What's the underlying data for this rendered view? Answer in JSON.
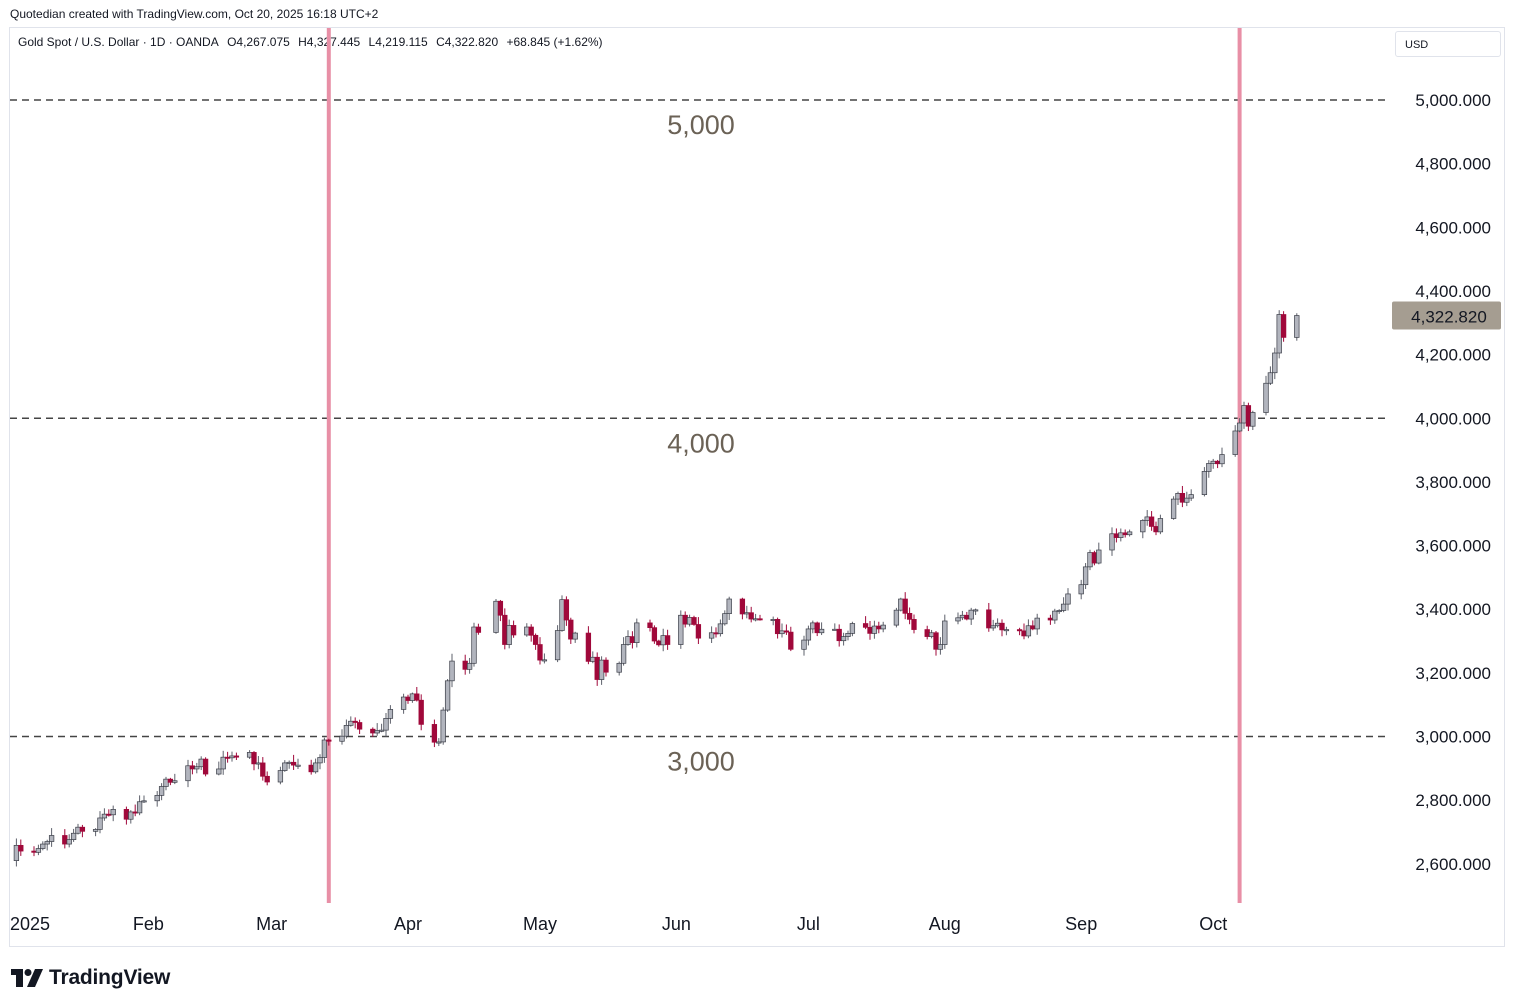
{
  "header": {
    "credit": "Quotedian created with TradingView.com, Oct 20, 2025 16:18 UTC+2"
  },
  "legend": {
    "symbol": "Gold Spot / U.S. Dollar · 1D · OANDA",
    "open": "O4,267.075",
    "high": "H4,327.445",
    "low": "L4,219.115",
    "close": "C4,322.820",
    "change": "+68.845 (+1.62%)"
  },
  "currency_label": "USD",
  "brand": {
    "name": "TradingView",
    "logo_icon": "tradingview-logo-icon"
  },
  "colors": {
    "up_body": "#b2b5be",
    "down_body": "#a0083a",
    "wick_up": "#5d606b",
    "wick_down": "#a0083a",
    "vline": "#e88fa6",
    "hline": "#444444",
    "annotation": "#6b6256",
    "price_tag_bg": "#a59d91"
  },
  "chart_data": {
    "type": "candlestick",
    "y_axis": {
      "ticks": [
        2600,
        2800,
        3000,
        3200,
        3400,
        3600,
        3800,
        4000,
        4200,
        4400,
        4600,
        4800,
        5000
      ],
      "tick_labels": [
        "2,600.000",
        "2,800.000",
        "3,000.000",
        "3,200.000",
        "3,400.000",
        "3,600.000",
        "3,800.000",
        "4,000.000",
        "4,200.000",
        "4,400.000",
        "4,600.000",
        "4,800.000",
        "5,000.000"
      ]
    },
    "x_axis": {
      "labels": [
        {
          "text": "2025",
          "date": "2025-01-01"
        },
        {
          "text": "Feb",
          "date": "2025-02-01"
        },
        {
          "text": "Mar",
          "date": "2025-03-01"
        },
        {
          "text": "Apr",
          "date": "2025-04-01"
        },
        {
          "text": "May",
          "date": "2025-05-01"
        },
        {
          "text": "Jun",
          "date": "2025-06-01"
        },
        {
          "text": "Jul",
          "date": "2025-07-01"
        },
        {
          "text": "Aug",
          "date": "2025-08-01"
        },
        {
          "text": "Sep",
          "date": "2025-09-01"
        },
        {
          "text": "Oct",
          "date": "2025-10-01"
        }
      ]
    },
    "horizontal_lines": [
      {
        "value": 5000,
        "label": "5,000"
      },
      {
        "value": 4000,
        "label": "4,000"
      },
      {
        "value": 3000,
        "label": "3,000"
      }
    ],
    "vertical_lines": [
      {
        "date": "2025-03-14"
      },
      {
        "date": "2025-10-07"
      }
    ],
    "last_price": {
      "value": 4322.82,
      "label": "4,322.820"
    },
    "closes": [
      [
        "2024-12-30",
        2610
      ],
      [
        "2025-01-02",
        2658
      ],
      [
        "2025-01-03",
        2640
      ],
      [
        "2025-01-06",
        2636
      ],
      [
        "2025-01-07",
        2648
      ],
      [
        "2025-01-08",
        2662
      ],
      [
        "2025-01-09",
        2670
      ],
      [
        "2025-01-10",
        2689
      ],
      [
        "2025-01-13",
        2662
      ],
      [
        "2025-01-14",
        2676
      ],
      [
        "2025-01-15",
        2696
      ],
      [
        "2025-01-16",
        2715
      ],
      [
        "2025-01-17",
        2702
      ],
      [
        "2025-01-20",
        2708
      ],
      [
        "2025-01-21",
        2744
      ],
      [
        "2025-01-22",
        2756
      ],
      [
        "2025-01-23",
        2754
      ],
      [
        "2025-01-24",
        2771
      ],
      [
        "2025-01-27",
        2740
      ],
      [
        "2025-01-28",
        2763
      ],
      [
        "2025-01-29",
        2760
      ],
      [
        "2025-01-30",
        2795
      ],
      [
        "2025-01-31",
        2798
      ],
      [
        "2025-02-03",
        2815
      ],
      [
        "2025-02-04",
        2843
      ],
      [
        "2025-02-05",
        2866
      ],
      [
        "2025-02-06",
        2856
      ],
      [
        "2025-02-07",
        2861
      ],
      [
        "2025-02-10",
        2908
      ],
      [
        "2025-02-11",
        2898
      ],
      [
        "2025-02-12",
        2905
      ],
      [
        "2025-02-13",
        2929
      ],
      [
        "2025-02-14",
        2882
      ],
      [
        "2025-02-17",
        2898
      ],
      [
        "2025-02-18",
        2935
      ],
      [
        "2025-02-19",
        2933
      ],
      [
        "2025-02-20",
        2939
      ],
      [
        "2025-02-21",
        2935
      ],
      [
        "2025-02-24",
        2950
      ],
      [
        "2025-02-25",
        2914
      ],
      [
        "2025-02-26",
        2917
      ],
      [
        "2025-02-27",
        2875
      ],
      [
        "2025-02-28",
        2857
      ],
      [
        "2025-03-03",
        2893
      ],
      [
        "2025-03-04",
        2917
      ],
      [
        "2025-03-05",
        2919
      ],
      [
        "2025-03-06",
        2910
      ],
      [
        "2025-03-07",
        2910
      ],
      [
        "2025-03-10",
        2889
      ],
      [
        "2025-03-11",
        2917
      ],
      [
        "2025-03-12",
        2934
      ],
      [
        "2025-03-13",
        2989
      ],
      [
        "2025-03-14",
        2985
      ],
      [
        "2025-03-17",
        3001
      ],
      [
        "2025-03-18",
        3035
      ],
      [
        "2025-03-19",
        3048
      ],
      [
        "2025-03-20",
        3044
      ],
      [
        "2025-03-21",
        3023
      ],
      [
        "2025-03-24",
        3011
      ],
      [
        "2025-03-25",
        3019
      ],
      [
        "2025-03-26",
        3020
      ],
      [
        "2025-03-27",
        3057
      ],
      [
        "2025-03-28",
        3085
      ],
      [
        "2025-03-31",
        3124
      ],
      [
        "2025-04-01",
        3113
      ],
      [
        "2025-04-02",
        3134
      ],
      [
        "2025-04-03",
        3114
      ],
      [
        "2025-04-04",
        3038
      ],
      [
        "2025-04-07",
        2982
      ],
      [
        "2025-04-08",
        2983
      ],
      [
        "2025-04-09",
        3083
      ],
      [
        "2025-04-10",
        3175
      ],
      [
        "2025-04-11",
        3237
      ],
      [
        "2025-04-14",
        3211
      ],
      [
        "2025-04-15",
        3230
      ],
      [
        "2025-04-16",
        3344
      ],
      [
        "2025-04-17",
        3327
      ],
      [
        "2025-04-21",
        3425
      ],
      [
        "2025-04-22",
        3381
      ],
      [
        "2025-04-23",
        3289
      ],
      [
        "2025-04-24",
        3349
      ],
      [
        "2025-04-25",
        3319
      ],
      [
        "2025-04-28",
        3344
      ],
      [
        "2025-04-29",
        3318
      ],
      [
        "2025-04-30",
        3289
      ],
      [
        "2025-05-01",
        3240
      ],
      [
        "2025-05-02",
        3241
      ],
      [
        "2025-05-05",
        3333
      ],
      [
        "2025-05-06",
        3430
      ],
      [
        "2025-05-07",
        3366
      ],
      [
        "2025-05-08",
        3306
      ],
      [
        "2025-05-09",
        3325
      ],
      [
        "2025-05-12",
        3236
      ],
      [
        "2025-05-13",
        3249
      ],
      [
        "2025-05-14",
        3179
      ],
      [
        "2025-05-15",
        3240
      ],
      [
        "2025-05-16",
        3202
      ],
      [
        "2025-05-19",
        3230
      ],
      [
        "2025-05-20",
        3289
      ],
      [
        "2025-05-21",
        3314
      ],
      [
        "2025-05-22",
        3295
      ],
      [
        "2025-05-23",
        3357
      ],
      [
        "2025-05-26",
        3342
      ],
      [
        "2025-05-27",
        3300
      ],
      [
        "2025-05-28",
        3288
      ],
      [
        "2025-05-29",
        3317
      ],
      [
        "2025-05-30",
        3289
      ],
      [
        "2025-06-02",
        3381
      ],
      [
        "2025-06-03",
        3353
      ],
      [
        "2025-06-04",
        3374
      ],
      [
        "2025-06-05",
        3352
      ],
      [
        "2025-06-06",
        3309
      ],
      [
        "2025-06-09",
        3326
      ],
      [
        "2025-06-10",
        3323
      ],
      [
        "2025-06-11",
        3354
      ],
      [
        "2025-06-12",
        3386
      ],
      [
        "2025-06-13",
        3432
      ],
      [
        "2025-06-16",
        3385
      ],
      [
        "2025-06-17",
        3389
      ],
      [
        "2025-06-18",
        3369
      ],
      [
        "2025-06-19",
        3370
      ],
      [
        "2025-06-20",
        3368
      ],
      [
        "2025-06-23",
        3368
      ],
      [
        "2025-06-24",
        3323
      ],
      [
        "2025-06-25",
        3332
      ],
      [
        "2025-06-26",
        3328
      ],
      [
        "2025-06-27",
        3274
      ],
      [
        "2025-06-30",
        3303
      ],
      [
        "2025-07-01",
        3338
      ],
      [
        "2025-07-02",
        3357
      ],
      [
        "2025-07-03",
        3326
      ],
      [
        "2025-07-04",
        3337
      ],
      [
        "2025-07-07",
        3337
      ],
      [
        "2025-07-08",
        3301
      ],
      [
        "2025-07-09",
        3314
      ],
      [
        "2025-07-10",
        3324
      ],
      [
        "2025-07-11",
        3355
      ],
      [
        "2025-07-14",
        3343
      ],
      [
        "2025-07-15",
        3324
      ],
      [
        "2025-07-16",
        3347
      ],
      [
        "2025-07-17",
        3338
      ],
      [
        "2025-07-18",
        3350
      ],
      [
        "2025-07-21",
        3397
      ],
      [
        "2025-07-22",
        3432
      ],
      [
        "2025-07-23",
        3387
      ],
      [
        "2025-07-24",
        3368
      ],
      [
        "2025-07-25",
        3336
      ],
      [
        "2025-07-28",
        3314
      ],
      [
        "2025-07-29",
        3326
      ],
      [
        "2025-07-30",
        3274
      ],
      [
        "2025-07-31",
        3289
      ],
      [
        "2025-08-01",
        3363
      ],
      [
        "2025-08-04",
        3373
      ],
      [
        "2025-08-05",
        3381
      ],
      [
        "2025-08-06",
        3369
      ],
      [
        "2025-08-07",
        3397
      ],
      [
        "2025-08-08",
        3398
      ],
      [
        "2025-08-11",
        3341
      ],
      [
        "2025-08-12",
        3348
      ],
      [
        "2025-08-13",
        3356
      ],
      [
        "2025-08-14",
        3335
      ],
      [
        "2025-08-15",
        3336
      ],
      [
        "2025-08-18",
        3332
      ],
      [
        "2025-08-19",
        3316
      ],
      [
        "2025-08-20",
        3348
      ],
      [
        "2025-08-21",
        3338
      ],
      [
        "2025-08-22",
        3372
      ],
      [
        "2025-08-25",
        3366
      ],
      [
        "2025-08-26",
        3394
      ],
      [
        "2025-08-27",
        3396
      ],
      [
        "2025-08-28",
        3416
      ],
      [
        "2025-08-29",
        3448
      ],
      [
        "2025-09-01",
        3477
      ],
      [
        "2025-09-02",
        3533
      ],
      [
        "2025-09-03",
        3578
      ],
      [
        "2025-09-04",
        3545
      ],
      [
        "2025-09-05",
        3586
      ],
      [
        "2025-09-08",
        3637
      ],
      [
        "2025-09-09",
        3625
      ],
      [
        "2025-09-10",
        3640
      ],
      [
        "2025-09-11",
        3634
      ],
      [
        "2025-09-12",
        3643
      ],
      [
        "2025-09-15",
        3679
      ],
      [
        "2025-09-16",
        3690
      ],
      [
        "2025-09-17",
        3660
      ],
      [
        "2025-09-18",
        3643
      ],
      [
        "2025-09-19",
        3685
      ],
      [
        "2025-09-22",
        3746
      ],
      [
        "2025-09-23",
        3764
      ],
      [
        "2025-09-24",
        3736
      ],
      [
        "2025-09-25",
        3749
      ],
      [
        "2025-09-26",
        3760
      ],
      [
        "2025-09-29",
        3833
      ],
      [
        "2025-09-30",
        3858
      ],
      [
        "2025-10-01",
        3865
      ],
      [
        "2025-10-02",
        3857
      ],
      [
        "2025-10-03",
        3886
      ],
      [
        "2025-10-06",
        3960
      ],
      [
        "2025-10-07",
        3985
      ],
      [
        "2025-10-08",
        4040
      ],
      [
        "2025-10-09",
        3975
      ],
      [
        "2025-10-10",
        4018
      ],
      [
        "2025-10-13",
        4110
      ],
      [
        "2025-10-14",
        4143
      ],
      [
        "2025-10-15",
        4205
      ],
      [
        "2025-10-16",
        4326
      ],
      [
        "2025-10-17",
        4254
      ],
      [
        "2025-10-20",
        4322.82
      ]
    ]
  }
}
